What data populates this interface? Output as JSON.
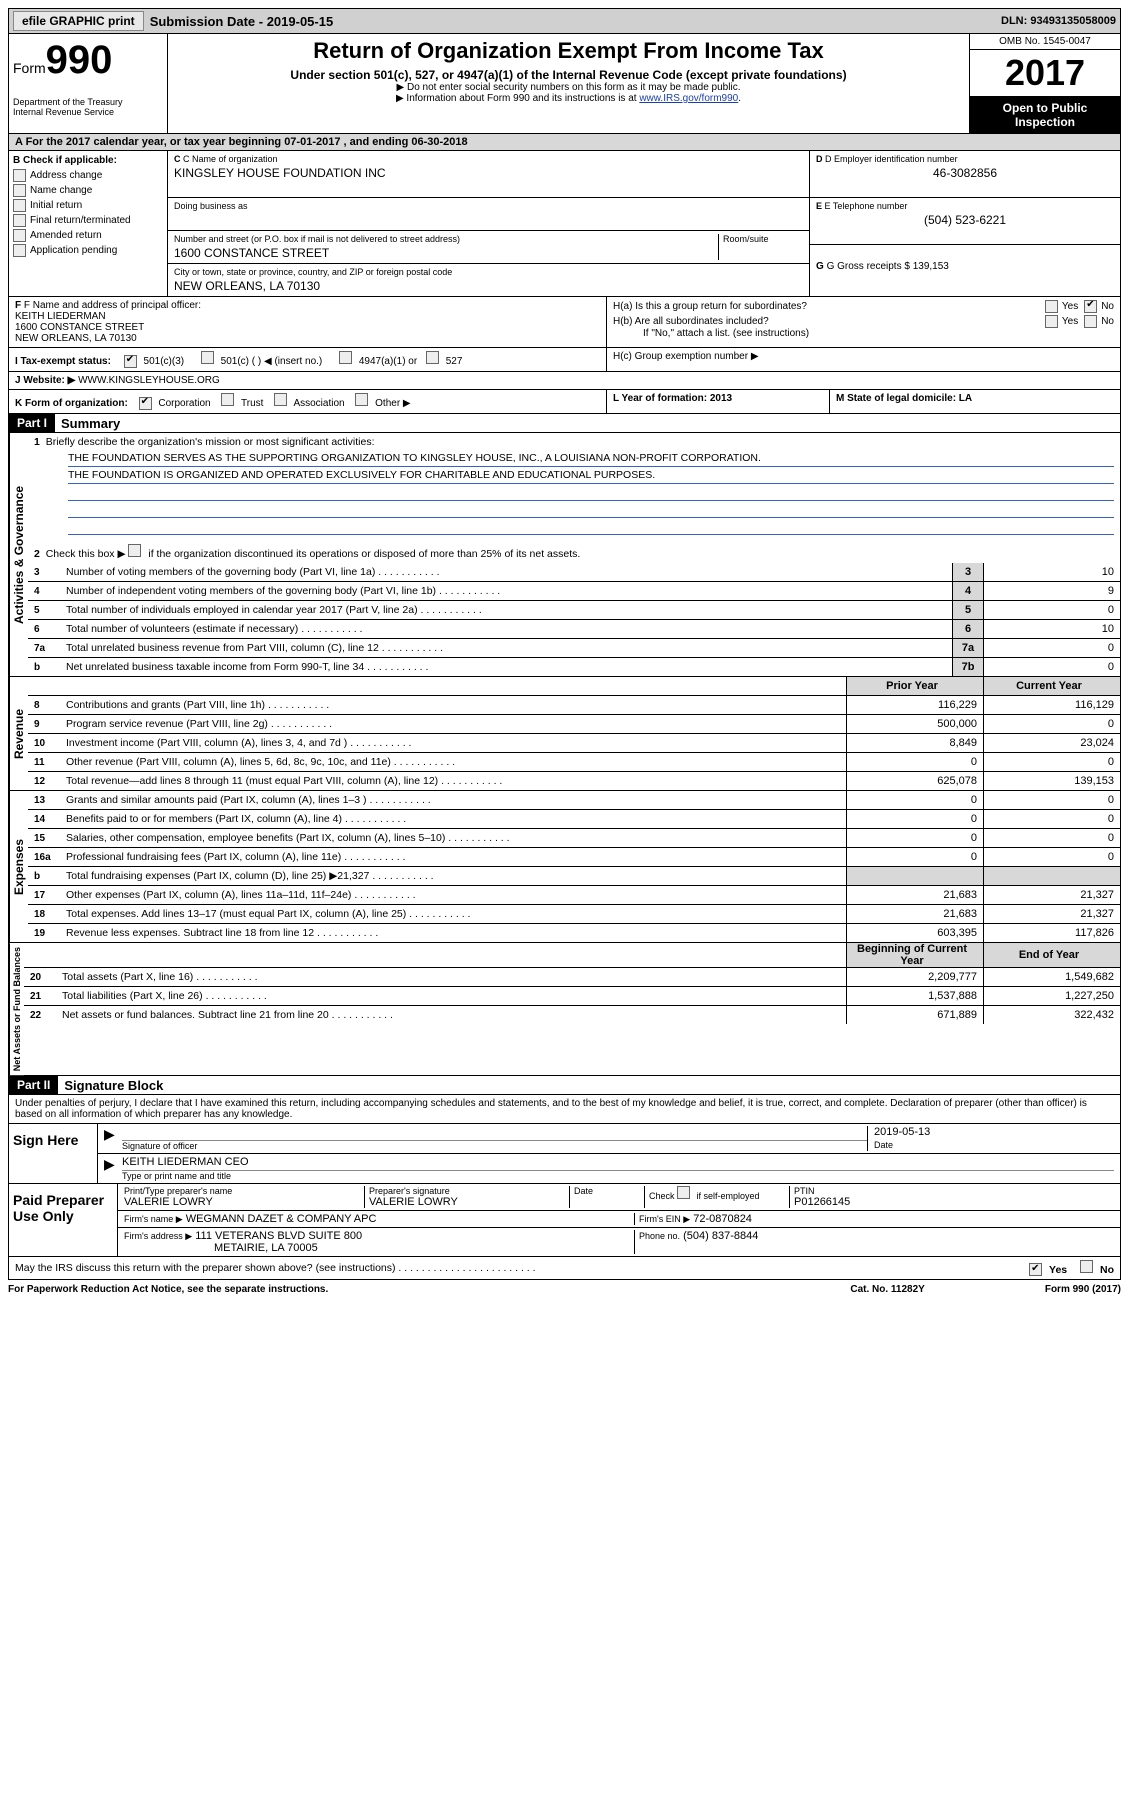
{
  "top": {
    "efile": "efile GRAPHIC print",
    "submission_date_label": "Submission Date - 2019-05-15",
    "dln": "DLN: 93493135058009"
  },
  "header": {
    "form_label": "Form",
    "form_num": "990",
    "dept1": "Department of the Treasury",
    "dept2": "Internal Revenue Service",
    "title": "Return of Organization Exempt From Income Tax",
    "subtitle": "Under section 501(c), 527, or 4947(a)(1) of the Internal Revenue Code (except private foundations)",
    "note1": "▶ Do not enter social security numbers on this form as it may be made public.",
    "note2": "▶ Information about Form 990 and its instructions is at ",
    "note2_link": "www.IRS.gov/form990",
    "omb": "OMB No. 1545-0047",
    "year": "2017",
    "open": "Open to Public Inspection"
  },
  "section_a": "A  For the 2017 calendar year, or tax year beginning 07-01-2017   , and ending 06-30-2018",
  "section_b": {
    "label": "B Check if applicable:",
    "items": [
      "Address change",
      "Name change",
      "Initial return",
      "Final return/terminated",
      "Amended return",
      "Application pending"
    ]
  },
  "section_c": {
    "name_label": "C Name of organization",
    "name": "KINGSLEY HOUSE FOUNDATION INC",
    "dba_label": "Doing business as",
    "street_label": "Number and street (or P.O. box if mail is not delivered to street address)",
    "room_label": "Room/suite",
    "street": "1600 CONSTANCE STREET",
    "city_label": "City or town, state or province, country, and ZIP or foreign postal code",
    "city": "NEW ORLEANS, LA  70130",
    "officer_label": "F Name and address of principal officer:",
    "officer_name": "KEITH LIEDERMAN",
    "officer_street": "1600 CONSTANCE STREET",
    "officer_city": "NEW ORLEANS, LA  70130"
  },
  "section_d": {
    "ein_label": "D Employer identification number",
    "ein": "46-3082856",
    "tel_label": "E Telephone number",
    "tel": "(504) 523-6221",
    "gross_label": "G Gross receipts $ 139,153"
  },
  "section_h": {
    "ha": "H(a)  Is this a group return for subordinates?",
    "hb": "H(b)  Are all subordinates included?",
    "hb_note": "If \"No,\" attach a list. (see instructions)",
    "hc": "H(c)  Group exemption number ▶",
    "yes": "Yes",
    "no": "No"
  },
  "tax_status": {
    "label": "I  Tax-exempt status:",
    "opt1": "501(c)(3)",
    "opt2": "501(c) (  ) ◀ (insert no.)",
    "opt3": "4947(a)(1) or",
    "opt4": "527"
  },
  "website": {
    "label": "J  Website: ▶",
    "value": "WWW.KINGSLEYHOUSE.ORG"
  },
  "section_k": "K Form of organization:",
  "k_opts": [
    "Corporation",
    "Trust",
    "Association",
    "Other ▶"
  ],
  "section_l": "L Year of formation: 2013",
  "section_m": "M State of legal domicile: LA",
  "part1": {
    "label": "Part I",
    "title": "Summary",
    "line1": "Briefly describe the organization's mission or most significant activities:",
    "mission1": "THE FOUNDATION SERVES AS THE SUPPORTING ORGANIZATION TO KINGSLEY HOUSE, INC., A LOUISIANA NON-PROFIT CORPORATION.",
    "mission2": "THE FOUNDATION IS ORGANIZED AND OPERATED EXCLUSIVELY FOR CHARITABLE AND EDUCATIONAL PURPOSES.",
    "line2": "Check this box ▶        if the organization discontinued its operations or disposed of more than 25% of its net assets.",
    "rows_single": [
      {
        "n": "3",
        "t": "Number of voting members of the governing body (Part VI, line 1a)",
        "v": "10"
      },
      {
        "n": "4",
        "t": "Number of independent voting members of the governing body (Part VI, line 1b)",
        "v": "9"
      },
      {
        "n": "5",
        "t": "Total number of individuals employed in calendar year 2017 (Part V, line 2a)",
        "v": "0"
      },
      {
        "n": "6",
        "t": "Total number of volunteers (estimate if necessary)",
        "v": "10"
      },
      {
        "n": "7a",
        "t": "Total unrelated business revenue from Part VIII, column (C), line 12",
        "v": "0"
      },
      {
        "n": "b",
        "t": "Net unrelated business taxable income from Form 990-T, line 34",
        "box": "7b",
        "v": "0"
      }
    ],
    "prior_year": "Prior Year",
    "current_year": "Current Year",
    "revenue_label": "Revenue",
    "revenue": [
      {
        "n": "8",
        "t": "Contributions and grants (Part VIII, line 1h)",
        "p": "116,229",
        "c": "116,129"
      },
      {
        "n": "9",
        "t": "Program service revenue (Part VIII, line 2g)",
        "p": "500,000",
        "c": "0"
      },
      {
        "n": "10",
        "t": "Investment income (Part VIII, column (A), lines 3, 4, and 7d )",
        "p": "8,849",
        "c": "23,024"
      },
      {
        "n": "11",
        "t": "Other revenue (Part VIII, column (A), lines 5, 6d, 8c, 9c, 10c, and 11e)",
        "p": "0",
        "c": "0"
      },
      {
        "n": "12",
        "t": "Total revenue—add lines 8 through 11 (must equal Part VIII, column (A), line 12)",
        "p": "625,078",
        "c": "139,153"
      }
    ],
    "expenses_label": "Expenses",
    "expenses": [
      {
        "n": "13",
        "t": "Grants and similar amounts paid (Part IX, column (A), lines 1–3 )",
        "p": "0",
        "c": "0"
      },
      {
        "n": "14",
        "t": "Benefits paid to or for members (Part IX, column (A), line 4)",
        "p": "0",
        "c": "0"
      },
      {
        "n": "15",
        "t": "Salaries, other compensation, employee benefits (Part IX, column (A), lines 5–10)",
        "p": "0",
        "c": "0"
      },
      {
        "n": "16a",
        "t": "Professional fundraising fees (Part IX, column (A), line 11e)",
        "p": "0",
        "c": "0"
      },
      {
        "n": "b",
        "t": "Total fundraising expenses (Part IX, column (D), line 25) ▶21,327",
        "p": "",
        "c": "",
        "shaded": true
      },
      {
        "n": "17",
        "t": "Other expenses (Part IX, column (A), lines 11a–11d, 11f–24e)",
        "p": "21,683",
        "c": "21,327"
      },
      {
        "n": "18",
        "t": "Total expenses. Add lines 13–17 (must equal Part IX, column (A), line 25)",
        "p": "21,683",
        "c": "21,327"
      },
      {
        "n": "19",
        "t": "Revenue less expenses. Subtract line 18 from line 12",
        "p": "603,395",
        "c": "117,826"
      }
    ],
    "net_label": "Net Assets or Fund Balances",
    "begin_year": "Beginning of Current Year",
    "end_year": "End of Year",
    "net": [
      {
        "n": "20",
        "t": "Total assets (Part X, line 16)",
        "p": "2,209,777",
        "c": "1,549,682"
      },
      {
        "n": "21",
        "t": "Total liabilities (Part X, line 26)",
        "p": "1,537,888",
        "c": "1,227,250"
      },
      {
        "n": "22",
        "t": "Net assets or fund balances. Subtract line 21 from line 20",
        "p": "671,889",
        "c": "322,432"
      }
    ]
  },
  "part2": {
    "label": "Part II",
    "title": "Signature Block",
    "decl": "Under penalties of perjury, I declare that I have examined this return, including accompanying schedules and statements, and to the best of my knowledge and belief, it is true, correct, and complete. Declaration of preparer (other than officer) is based on all information of which preparer has any knowledge.",
    "sign_here": "Sign Here",
    "sig_officer": "Signature of officer",
    "date": "Date",
    "sig_date": "2019-05-13",
    "officer_name": "KEITH LIEDERMAN  CEO",
    "type_name": "Type or print name and title",
    "paid": "Paid Preparer Use Only",
    "preparer_name_label": "Print/Type preparer's name",
    "preparer_name": "VALERIE LOWRY",
    "preparer_sig_label": "Preparer's signature",
    "preparer_sig": "VALERIE LOWRY",
    "date_label": "Date",
    "check_self": "Check        if self-employed",
    "ptin_label": "PTIN",
    "ptin": "P01266145",
    "firm_name_label": "Firm's name     ▶",
    "firm_name": "WEGMANN DAZET & COMPANY APC",
    "firm_ein_label": "Firm's EIN ▶",
    "firm_ein": "72-0870824",
    "firm_addr_label": "Firm's address ▶",
    "firm_addr1": "111 VETERANS BLVD SUITE 800",
    "firm_addr2": "METAIRIE, LA  70005",
    "phone_label": "Phone no.",
    "phone": "(504) 837-8844",
    "discuss": "May the IRS discuss this return with the preparer shown above? (see instructions)"
  },
  "footer": {
    "paperwork": "For Paperwork Reduction Act Notice, see the separate instructions.",
    "cat": "Cat. No. 11282Y",
    "form": "Form 990 (2017)"
  },
  "colors": {
    "link": "#1a3fad",
    "shade": "#d8d8d8"
  }
}
